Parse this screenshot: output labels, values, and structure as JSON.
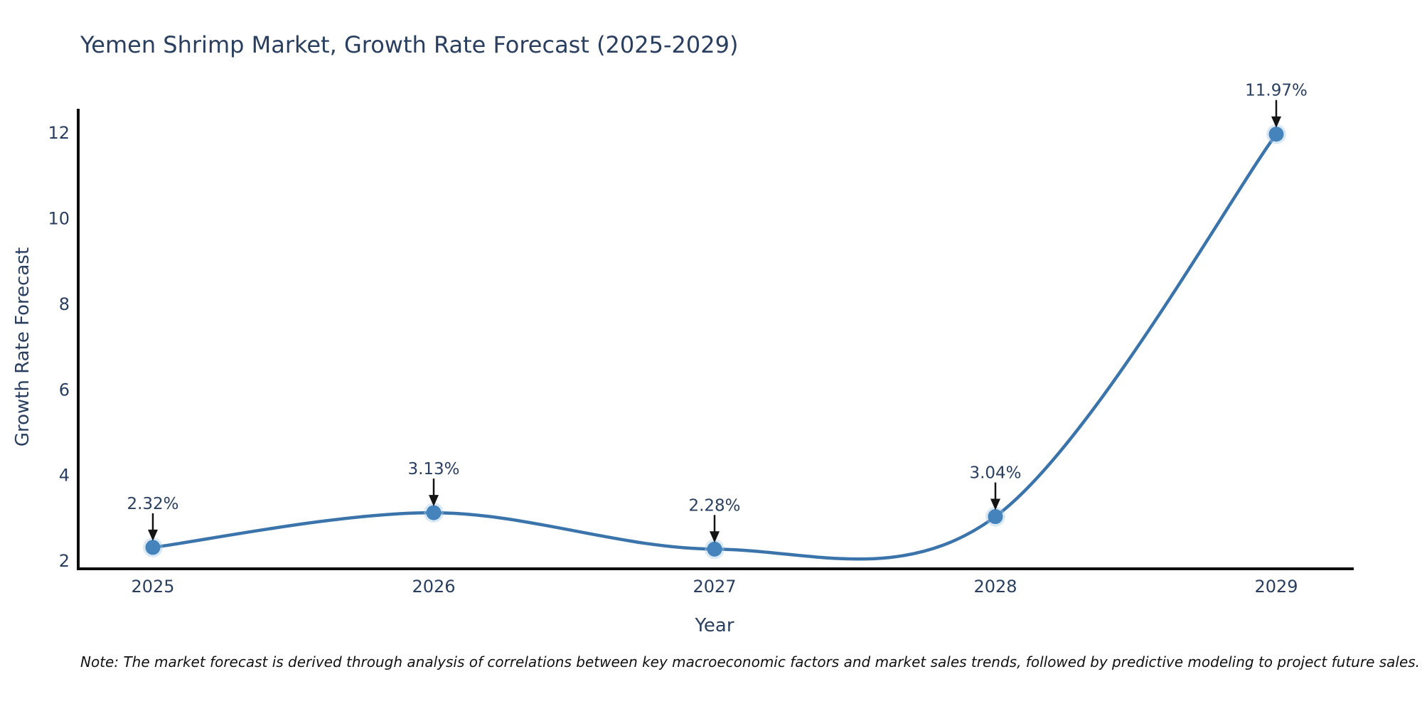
{
  "chart_data": {
    "type": "line",
    "line_shape": "spline",
    "title": "Yemen Shrimp Market, Growth Rate Forecast (2025-2029)",
    "xlabel": "Year",
    "ylabel": "Growth Rate Forecast",
    "categories": [
      "2025",
      "2026",
      "2027",
      "2028",
      "2029"
    ],
    "values": [
      2.32,
      3.13,
      2.28,
      3.04,
      11.97
    ],
    "point_labels": [
      "2.32%",
      "3.13%",
      "2.28%",
      "3.04%",
      "11.97%"
    ],
    "y_ticks": [
      2,
      4,
      6,
      8,
      10,
      12
    ],
    "ylim": [
      1.82,
      12.53
    ],
    "grid": false,
    "legend": "none",
    "marker_style": "circle",
    "annotation_arrows": "down",
    "colors": {
      "line": "#3a74ab",
      "marker": "#4583bd",
      "marker_halo": "#a3c9e9",
      "axis_line": "#0d0d0d",
      "tick_text": "#2a3f5f",
      "title_text": "#2a3f5f",
      "annotation_text": "#2a3f5f",
      "arrow": "#141414",
      "background": "#ffffff"
    }
  },
  "footnote": {
    "text": "Note: The market forecast is derived through analysis of correlations between key macroeconomic factors and market sales trends, followed by predictive modeling to project future sales."
  }
}
